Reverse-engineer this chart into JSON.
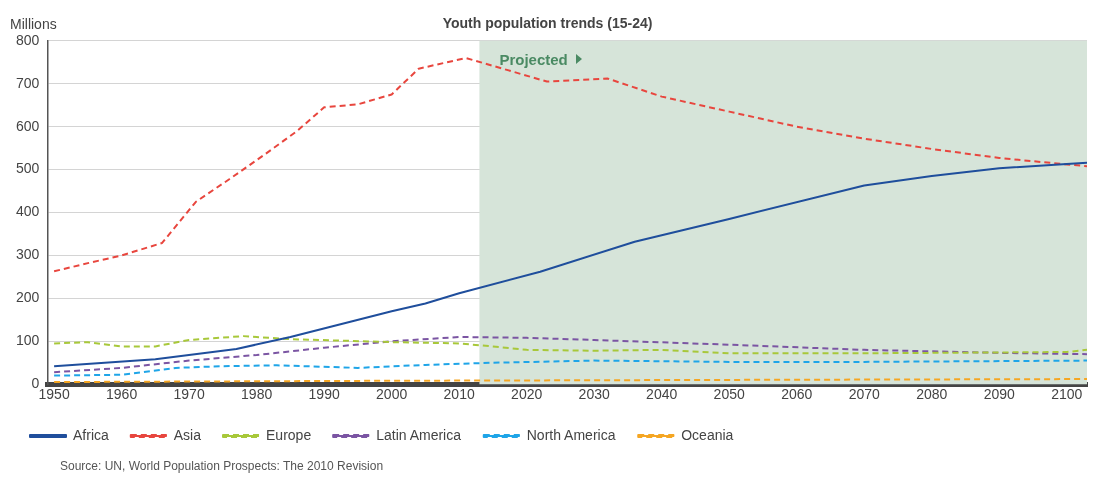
{
  "chart_data": {
    "type": "line",
    "title": "Youth population trends (15-24)",
    "ylabel": "Millions",
    "xlim": [
      1949,
      2103
    ],
    "xticks": [
      1950,
      1960,
      1970,
      1980,
      1990,
      2000,
      2010,
      2020,
      2030,
      2040,
      2050,
      2060,
      2070,
      2080,
      2090,
      2100
    ],
    "ylim": [
      0,
      800
    ],
    "yticks": [
      0,
      100,
      200,
      300,
      400,
      500,
      600,
      700,
      800
    ],
    "grid": "y",
    "legend": "bottom",
    "marker": "none",
    "bands": [
      {
        "axis": "x",
        "from": 2013,
        "to": 2103,
        "label": "Projected",
        "color": "#d6e4d9"
      }
    ],
    "annotations": [
      "Source: UN, World Population Prospects: The 2010 Revision"
    ],
    "series": [
      {
        "name": "Africa",
        "color": "#1f4e9c",
        "line_style": "solid",
        "x": [
          1950,
          1965,
          1977,
          1985,
          2000,
          2005,
          2010,
          2022,
          2036,
          2050,
          2070,
          2080,
          2090,
          2100,
          2103
        ],
        "values": [
          42,
          58,
          82,
          110,
          170,
          188,
          212,
          262,
          332,
          385,
          463,
          485,
          503,
          513,
          516
        ]
      },
      {
        "name": "Asia",
        "color": "#e8463e",
        "line_style": "dashed",
        "x": [
          1950,
          1955,
          1960,
          1966,
          1971,
          1976,
          1981,
          1986,
          1990,
          1995,
          2000,
          2004,
          2011,
          2023,
          2032,
          2040,
          2050,
          2060,
          2070,
          2080,
          2090,
          2100,
          2103
        ],
        "values": [
          263,
          282,
          300,
          329,
          425,
          478,
          533,
          590,
          645,
          652,
          675,
          735,
          760,
          705,
          712,
          670,
          635,
          600,
          572,
          548,
          527,
          512,
          508
        ]
      },
      {
        "name": "Europe",
        "color": "#a8c83a",
        "line_style": "dashed",
        "x": [
          1950,
          1955,
          1960,
          1965,
          1970,
          1978,
          1985,
          2000,
          2010,
          2015,
          2020,
          2030,
          2040,
          2050,
          2070,
          2100,
          2103
        ],
        "values": [
          95,
          98,
          88,
          88,
          103,
          112,
          105,
          98,
          95,
          88,
          80,
          78,
          80,
          72,
          72,
          75,
          80
        ]
      },
      {
        "name": "Latin America",
        "color": "#7b55a3",
        "line_style": "dashed",
        "x": [
          1950,
          1960,
          1970,
          1980,
          1990,
          2000,
          2010,
          2020,
          2030,
          2050,
          2070,
          2090,
          2103
        ],
        "values": [
          28,
          38,
          55,
          68,
          85,
          100,
          110,
          108,
          103,
          92,
          80,
          73,
          70
        ]
      },
      {
        "name": "North America",
        "color": "#1fa5e8",
        "line_style": "dashed",
        "x": [
          1950,
          1960,
          1968,
          1975,
          1983,
          1995,
          2005,
          2015,
          2030,
          2050,
          2070,
          2103
        ],
        "values": [
          20,
          22,
          38,
          42,
          44,
          38,
          45,
          50,
          55,
          52,
          52,
          55
        ]
      },
      {
        "name": "Oceania",
        "color": "#f5a623",
        "line_style": "dashed",
        "x": [
          1950,
          2000,
          2050,
          2103
        ],
        "values": [
          5,
          8,
          10,
          12
        ]
      }
    ]
  }
}
